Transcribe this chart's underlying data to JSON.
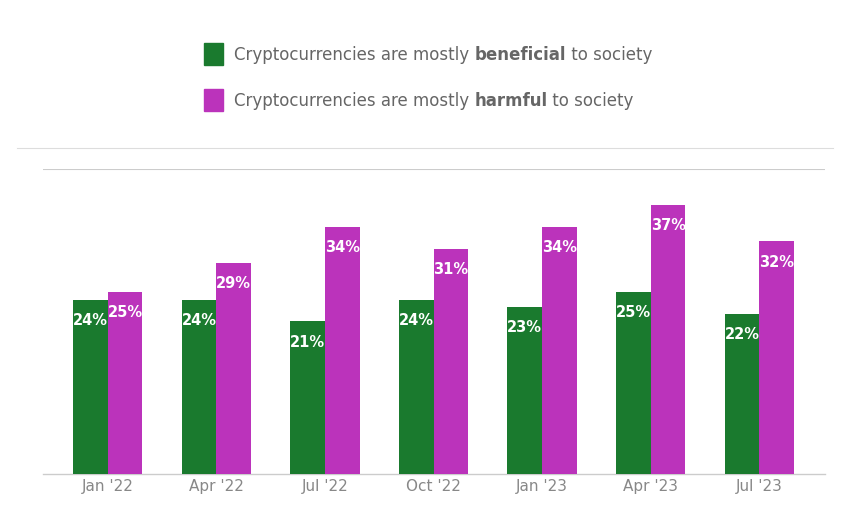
{
  "categories": [
    "Jan '22",
    "Apr '22",
    "Jul '22",
    "Oct '22",
    "Jan '23",
    "Apr '23",
    "Jul '23"
  ],
  "beneficial": [
    24,
    24,
    21,
    24,
    23,
    25,
    22
  ],
  "harmful": [
    25,
    29,
    34,
    31,
    34,
    37,
    32
  ],
  "beneficial_color": "#1a7a2e",
  "harmful_color": "#bb33bb",
  "label_color": "#ffffff",
  "background_color": "#ffffff",
  "tick_color": "#888888",
  "bar_width": 0.32,
  "label_fontsize": 10.5,
  "tick_fontsize": 11,
  "legend_fontsize": 12,
  "ylim": [
    0,
    42
  ],
  "fig_width": 8.5,
  "fig_height": 5.27,
  "dpi": 100
}
